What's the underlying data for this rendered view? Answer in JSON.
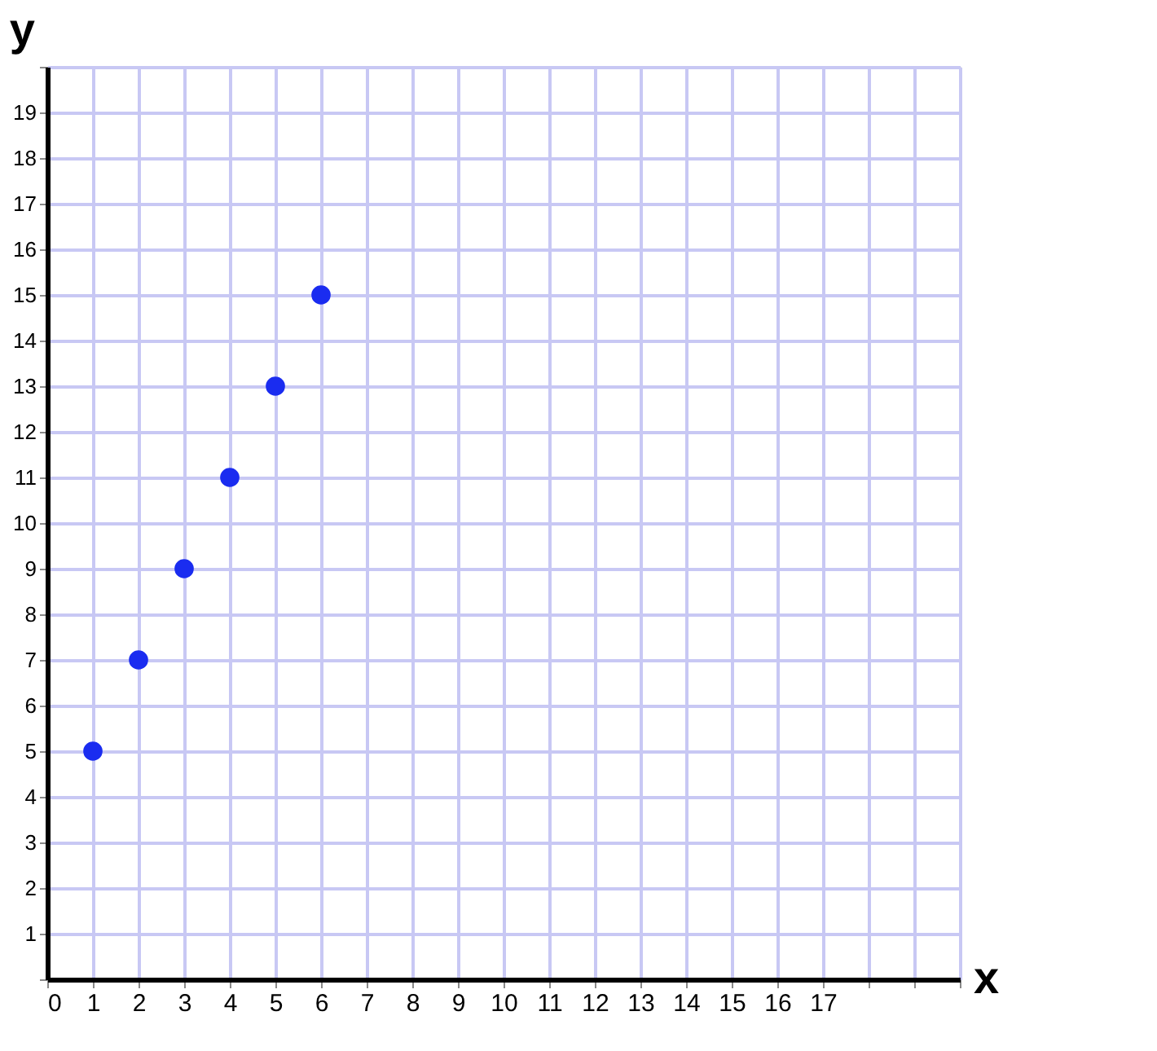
{
  "chart_data": {
    "type": "scatter",
    "xlabel": "x",
    "ylabel": "y",
    "x": [
      1,
      2,
      3,
      4,
      5,
      6
    ],
    "series": [
      {
        "color": "#1a2cf0",
        "values": [
          5,
          7,
          9,
          11,
          13,
          15
        ]
      }
    ],
    "xlim": [
      0,
      20
    ],
    "ylim": [
      0,
      20
    ],
    "xticks": [
      0,
      1,
      2,
      3,
      4,
      5,
      6,
      7,
      8,
      9,
      10,
      11,
      12,
      13,
      14,
      15,
      16,
      17,
      {
        "value": 18,
        "label": null
      },
      {
        "value": 19,
        "label": null
      },
      {
        "value": 20,
        "label": null
      }
    ],
    "yticks": [
      {
        "value": 0,
        "label": null
      },
      1,
      2,
      3,
      4,
      5,
      6,
      7,
      8,
      9,
      10,
      11,
      12,
      13,
      14,
      15,
      16,
      17,
      18,
      19,
      {
        "value": 20,
        "label": null
      }
    ],
    "grid": true,
    "marker": "circle"
  }
}
